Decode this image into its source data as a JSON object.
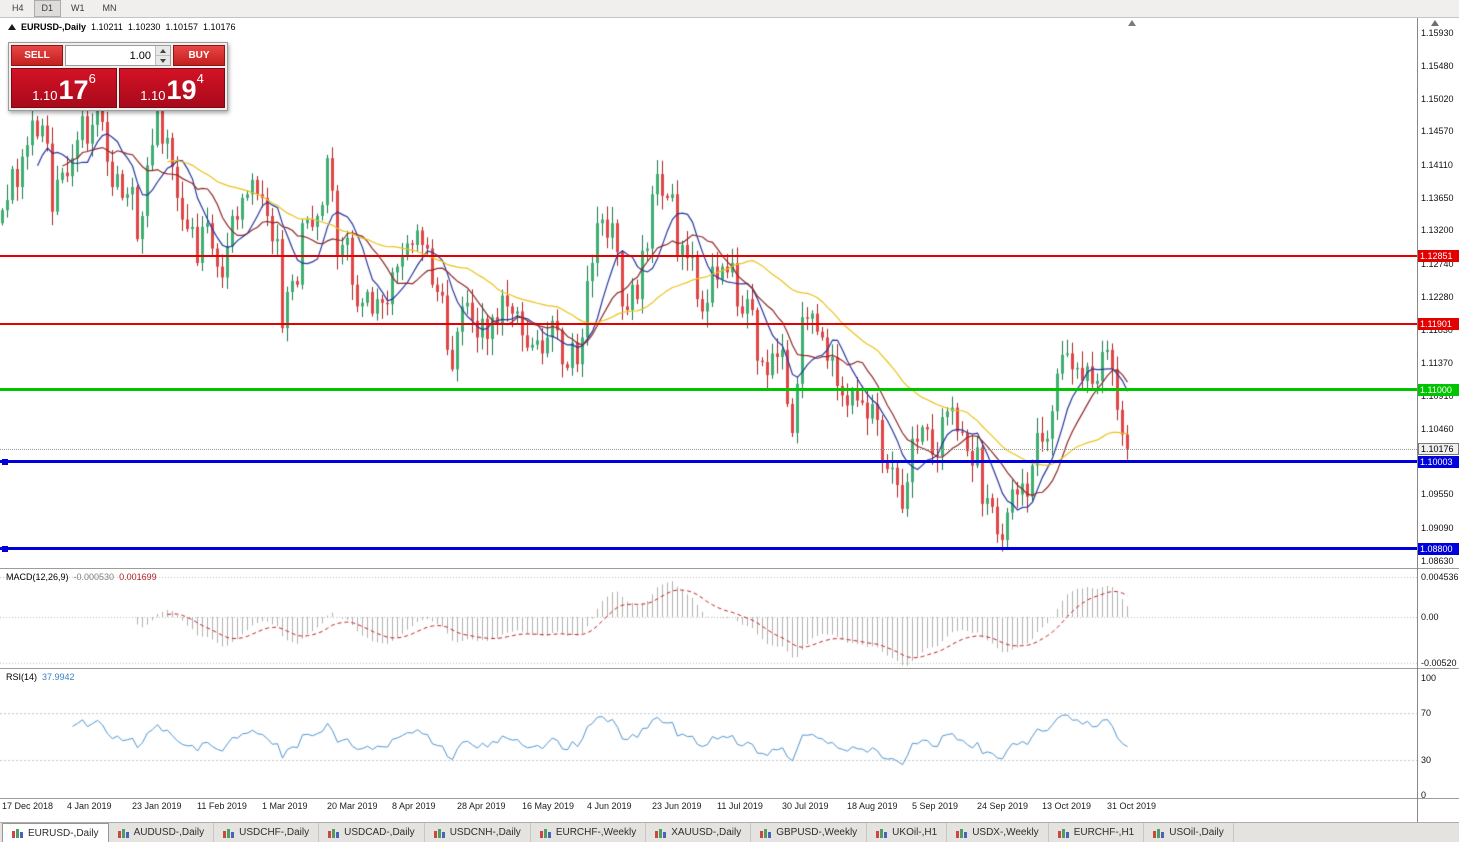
{
  "toolbar": {
    "timeframes": [
      {
        "label": "H4",
        "active": false
      },
      {
        "label": "D1",
        "active": true
      },
      {
        "label": "W1",
        "active": false
      },
      {
        "label": "MN",
        "active": false
      }
    ]
  },
  "chart_header": {
    "symbol_period": "EURUSD-,Daily",
    "open": "1.10211",
    "high": "1.10230",
    "low": "1.10157",
    "close": "1.10176"
  },
  "trade_panel": {
    "sell_label": "SELL",
    "buy_label": "BUY",
    "lot_value": "1.00",
    "sell": {
      "prefix": "1.10",
      "big": "17",
      "sup": "6"
    },
    "buy": {
      "prefix": "1.10",
      "big": "19",
      "sup": "4"
    }
  },
  "price_axis": {
    "ticks": [
      {
        "label": "1.15930",
        "value": 1.1593
      },
      {
        "label": "1.15480",
        "value": 1.1548
      },
      {
        "label": "1.15020",
        "value": 1.1502
      },
      {
        "label": "1.14570",
        "value": 1.1457
      },
      {
        "label": "1.14110",
        "value": 1.1411
      },
      {
        "label": "1.13650",
        "value": 1.1365
      },
      {
        "label": "1.13200",
        "value": 1.132
      },
      {
        "label": "1.12740",
        "value": 1.1274
      },
      {
        "label": "1.12280",
        "value": 1.1228
      },
      {
        "label": "1.11830",
        "value": 1.1183
      },
      {
        "label": "1.11370",
        "value": 1.1137
      },
      {
        "label": "1.10910",
        "value": 1.1091
      },
      {
        "label": "1.10460",
        "value": 1.1046
      },
      {
        "label": "1.09550",
        "value": 1.0955
      },
      {
        "label": "1.09090",
        "value": 1.0909
      },
      {
        "label": "1.08630",
        "value": 1.0863
      }
    ]
  },
  "levels": [
    {
      "name": "resistance-line-1",
      "label": "1.12851",
      "value": 1.12851,
      "color": "#e30000",
      "thickness": 2,
      "handles": false
    },
    {
      "name": "resistance-line-2",
      "label": "1.11901",
      "value": 1.11901,
      "color": "#e30000",
      "thickness": 2,
      "handles": false
    },
    {
      "name": "pivot-line-green",
      "label": "1.11000",
      "value": 1.11,
      "color": "#00c400",
      "thickness": 3,
      "handles": false
    },
    {
      "name": "support-line-1",
      "label": "1.10003",
      "value": 1.10003,
      "color": "#0000dd",
      "thickness": 3,
      "handles": true
    },
    {
      "name": "support-line-2",
      "label": "1.08800",
      "value": 1.088,
      "color": "#0000dd",
      "thickness": 3,
      "handles": true
    }
  ],
  "current_price": {
    "label": "1.10176",
    "value": 1.10176
  },
  "indicators": {
    "macd": {
      "name": "MACD(12,26,9)",
      "main_value": "-0.000530",
      "signal_value": "0.001699",
      "axis": [
        {
          "label": "0.004536",
          "value": 0.004536
        },
        {
          "label": "0.00",
          "value": 0
        },
        {
          "label": "-0.00520",
          "value": -0.0052
        }
      ]
    },
    "rsi": {
      "name": "RSI(14)",
      "value": "37.9942",
      "levels": [
        70,
        30
      ],
      "axis": [
        {
          "label": "100",
          "value": 100
        },
        {
          "label": "70",
          "value": 70
        },
        {
          "label": "30",
          "value": 30
        },
        {
          "label": "0",
          "value": 0
        }
      ]
    }
  },
  "date_axis": {
    "labels": [
      "17 Dec 2018",
      "4 Jan 2019",
      "23 Jan 2019",
      "11 Feb 2019",
      "1 Mar 2019",
      "20 Mar 2019",
      "8 Apr 2019",
      "28 Apr 2019",
      "16 May 2019",
      "4 Jun 2019",
      "23 Jun 2019",
      "11 Jul 2019",
      "30 Jul 2019",
      "18 Aug 2019",
      "5 Sep 2019",
      "24 Sep 2019",
      "13 Oct 2019",
      "31 Oct 2019"
    ]
  },
  "tabs": [
    {
      "label": "EURUSD-,Daily",
      "active": true
    },
    {
      "label": "AUDUSD-,Daily",
      "active": false
    },
    {
      "label": "USDCHF-,Daily",
      "active": false
    },
    {
      "label": "USDCAD-,Daily",
      "active": false
    },
    {
      "label": "USDCNH-,Daily",
      "active": false
    },
    {
      "label": "EURCHF-,Weekly",
      "active": false
    },
    {
      "label": "XAUUSD-,Daily",
      "active": false
    },
    {
      "label": "GBPUSD-,Weekly",
      "active": false
    },
    {
      "label": "UKOil-,H1",
      "active": false
    },
    {
      "label": "USDX-,Weekly",
      "active": false
    },
    {
      "label": "EURCHF-,H1",
      "active": false
    },
    {
      "label": "USOil-,Daily",
      "active": false
    }
  ],
  "chart_data": {
    "type": "candlestick",
    "title": "EURUSD-,Daily",
    "symbol": "EURUSD",
    "timeframe": "Daily",
    "price_range": [
      1.0863,
      1.1593
    ],
    "x_labels": [
      "17 Dec 2018",
      "4 Jan 2019",
      "23 Jan 2019",
      "11 Feb 2019",
      "1 Mar 2019",
      "20 Mar 2019",
      "8 Apr 2019",
      "28 Apr 2019",
      "16 May 2019",
      "4 Jun 2019",
      "23 Jun 2019",
      "11 Jul 2019",
      "30 Jul 2019",
      "18 Aug 2019",
      "5 Sep 2019",
      "24 Sep 2019",
      "13 Oct 2019",
      "31 Oct 2019"
    ],
    "x_label_every_n_candles": 13,
    "first_open": 1.133,
    "closes": [
      1.1348,
      1.1362,
      1.1405,
      1.138,
      1.1422,
      1.1438,
      1.1472,
      1.145,
      1.1465,
      1.144,
      1.1346,
      1.139,
      1.14,
      1.1395,
      1.142,
      1.1445,
      1.1478,
      1.144,
      1.1466,
      1.1495,
      1.147,
      1.1415,
      1.138,
      1.1398,
      1.1365,
      1.137,
      1.138,
      1.1308,
      1.134,
      1.141,
      1.1438,
      1.1485,
      1.144,
      1.1448,
      1.1408,
      1.1365,
      1.1335,
      1.1322,
      1.1325,
      1.1275,
      1.1325,
      1.133,
      1.1295,
      1.127,
      1.1255,
      1.1298,
      1.134,
      1.1335,
      1.1365,
      1.137,
      1.139,
      1.137,
      1.1365,
      1.134,
      1.1305,
      1.1308,
      1.1185,
      1.1235,
      1.125,
      1.1245,
      1.133,
      1.1335,
      1.1325,
      1.134,
      1.1355,
      1.142,
      1.1375,
      1.1285,
      1.13,
      1.131,
      1.1245,
      1.1215,
      1.122,
      1.1235,
      1.1205,
      1.1225,
      1.122,
      1.1218,
      1.1262,
      1.127,
      1.1285,
      1.1302,
      1.13,
      1.132,
      1.13,
      1.1295,
      1.1245,
      1.1235,
      1.123,
      1.1155,
      1.1128,
      1.118,
      1.1215,
      1.122,
      1.1195,
      1.1172,
      1.1198,
      1.117,
      1.12,
      1.1192,
      1.123,
      1.1215,
      1.1205,
      1.1208,
      1.1175,
      1.1158,
      1.1162,
      1.1168,
      1.115,
      1.1172,
      1.1195,
      1.1182,
      1.1135,
      1.113,
      1.1165,
      1.1135,
      1.1172,
      1.125,
      1.1275,
      1.133,
      1.1335,
      1.131,
      1.133,
      1.129,
      1.1215,
      1.121,
      1.1245,
      1.1225,
      1.1292,
      1.1295,
      1.137,
      1.1398,
      1.1368,
      1.1365,
      1.137,
      1.1285,
      1.13,
      1.1282,
      1.1285,
      1.1225,
      1.1208,
      1.122,
      1.127,
      1.1252,
      1.127,
      1.1262,
      1.1275,
      1.1215,
      1.1205,
      1.1225,
      1.121,
      1.114,
      1.1138,
      1.112,
      1.115,
      1.1145,
      1.1155,
      1.108,
      1.104,
      1.1108,
      1.12,
      1.1198,
      1.1205,
      1.118,
      1.1172,
      1.114,
      1.1145,
      1.1105,
      1.1092,
      1.1078,
      1.11,
      1.1085,
      1.1082,
      1.106,
      1.108,
      1.1058,
      1.1,
      1.099,
      1.0992,
      1.0968,
      1.0935,
      1.0972,
      1.1032,
      1.1028,
      1.1048,
      1.1045,
      1.101,
      1.1008,
      1.1062,
      1.107,
      1.1075,
      1.1042,
      1.104,
      1.1015,
      1.0995,
      1.102,
      1.0942,
      1.095,
      1.0938,
      1.09,
      1.0892,
      1.093,
      1.0962,
      1.0955,
      1.097,
      1.0952,
      1.0995,
      1.104,
      1.1028,
      1.1032,
      1.107,
      1.1122,
      1.1148,
      1.115,
      1.1128,
      1.113,
      1.1112,
      1.1132,
      1.1108,
      1.1112,
      1.1152,
      1.1155,
      1.1128,
      1.1072,
      1.1038,
      1.10176
    ],
    "moving_averages": [
      {
        "type": "SMA",
        "period": 8,
        "color": "#27379f"
      },
      {
        "type": "SMA",
        "period": 13,
        "color": "#8e2a2a"
      },
      {
        "type": "SMA",
        "period": 34,
        "color": "#e9c31d"
      }
    ],
    "candle_colors": {
      "bull_body": "#3fae73",
      "bull_wick": "#1d7a4d",
      "bear_body": "#e04545",
      "bear_wick": "#a82626"
    },
    "sub_charts": [
      {
        "type": "bar",
        "name": "MACD(12,26,9)",
        "current_main": -0.00053,
        "current_signal": 0.001699,
        "ylim": [
          -0.0052,
          0.004536
        ],
        "histogram_color": "#b0b0b0",
        "signal_color": "#c22222"
      },
      {
        "type": "line",
        "name": "RSI(14)",
        "current": 37.9942,
        "ylim": [
          0,
          100
        ],
        "line_color": "#4f93ce",
        "level_lines": [
          70,
          30
        ]
      }
    ]
  }
}
